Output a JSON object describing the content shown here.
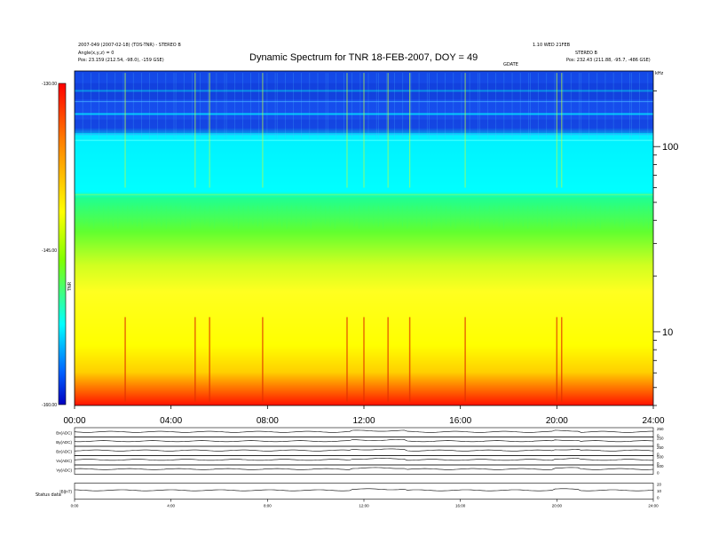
{
  "chart_data": [
    {
      "type": "heatmap",
      "title": "Dynamic Spectrum for TNR 18-FEB-2007, DOY = 49",
      "header_left": [
        "2007-049 (2007-02-18) (TDS-TNR) - STEREO B",
        "Angle(x,y,z) = 0",
        "Pos:   23.159 (212.54, -98.0), -159 GSE)"
      ],
      "header_right": [
        "1.10 WED 21FEB",
        "STEREO B",
        "Pos:   232.43 (211.88, -95.7, -486 GSE)"
      ],
      "top_axis_markers": [
        "GDATE",
        "kHz"
      ],
      "colorbar": {
        "label": "TNR",
        "tick_labels": [
          "-130.00",
          "-145.00",
          "-160.00"
        ],
        "colors": [
          "#ff0000",
          "#ff8000",
          "#ffff00",
          "#80ff00",
          "#00ffff",
          "#0060ff",
          "#0000c0"
        ]
      },
      "x_tick_labels": [
        "00:00",
        "04:00",
        "08:00",
        "12:00",
        "16:00",
        "20:00",
        "24:00"
      ],
      "x_range_hours": [
        0,
        24
      ],
      "y_axis_right": {
        "scale": "log",
        "unit": "kHz",
        "tick_labels": [
          "100",
          "10"
        ],
        "range": [
          4,
          256
        ]
      },
      "bands": [
        {
          "freq_hi": 256,
          "freq_lo": 110,
          "level": "blue"
        },
        {
          "freq_hi": 110,
          "freq_lo": 55,
          "level": "cyan"
        },
        {
          "freq_hi": 55,
          "freq_lo": 35,
          "level": "green"
        },
        {
          "freq_hi": 35,
          "freq_lo": 7,
          "level": "yellow"
        },
        {
          "freq_hi": 7,
          "freq_lo": 4,
          "level": "red"
        }
      ],
      "bursts_hours": [
        2.1,
        5.0,
        5.6,
        7.8,
        11.3,
        12.0,
        13.0,
        13.9,
        16.2,
        20.0,
        20.2
      ]
    },
    {
      "type": "line",
      "panels": [
        {
          "label": "Bx(ADC)",
          "right_ticks": [
            "250",
            "0"
          ]
        },
        {
          "label": "By(ADC)",
          "right_ticks": [
            "250",
            "0"
          ]
        },
        {
          "label": "Bz(ADC)",
          "right_ticks": [
            "250",
            "0"
          ]
        },
        {
          "label": "Vx(ADC)",
          "right_ticks": [
            "500",
            "0"
          ]
        },
        {
          "label": "Vy(ADC)",
          "right_ticks": [
            "500",
            "0"
          ]
        },
        {
          "label": "|B|(nT)",
          "right_ticks": [
            "20",
            "10",
            "0"
          ]
        }
      ],
      "x_tick_labels": [
        "0:00",
        "4:00",
        "8:00",
        "12:00",
        "16:00",
        "20:00",
        "24:00"
      ],
      "footer_label": "Status   data"
    }
  ]
}
